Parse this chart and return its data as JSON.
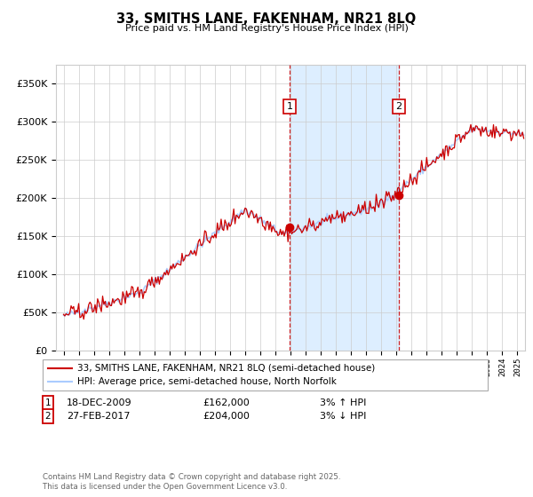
{
  "title": "33, SMITHS LANE, FAKENHAM, NR21 8LQ",
  "subtitle": "Price paid vs. HM Land Registry's House Price Index (HPI)",
  "legend_line1": "33, SMITHS LANE, FAKENHAM, NR21 8LQ (semi-detached house)",
  "legend_line2": "HPI: Average price, semi-detached house, North Norfolk",
  "footnote": "Contains HM Land Registry data © Crown copyright and database right 2025.\nThis data is licensed under the Open Government Licence v3.0.",
  "marker1_date": "18-DEC-2009",
  "marker1_price": 162000,
  "marker1_hpi": "3% ↑ HPI",
  "marker1_x": 2009.96,
  "marker2_date": "27-FEB-2017",
  "marker2_price": 204000,
  "marker2_hpi": "3% ↓ HPI",
  "marker2_x": 2017.16,
  "hpi_color": "#aaccff",
  "price_color": "#cc0000",
  "shaded_region_color": "#ddeeff",
  "ylim_max": 375000,
  "ylim_min": 0,
  "xlim_min": 1994.5,
  "xlim_max": 2025.5,
  "marker1_hpi_val": 162000,
  "marker2_hpi_val": 204000
}
